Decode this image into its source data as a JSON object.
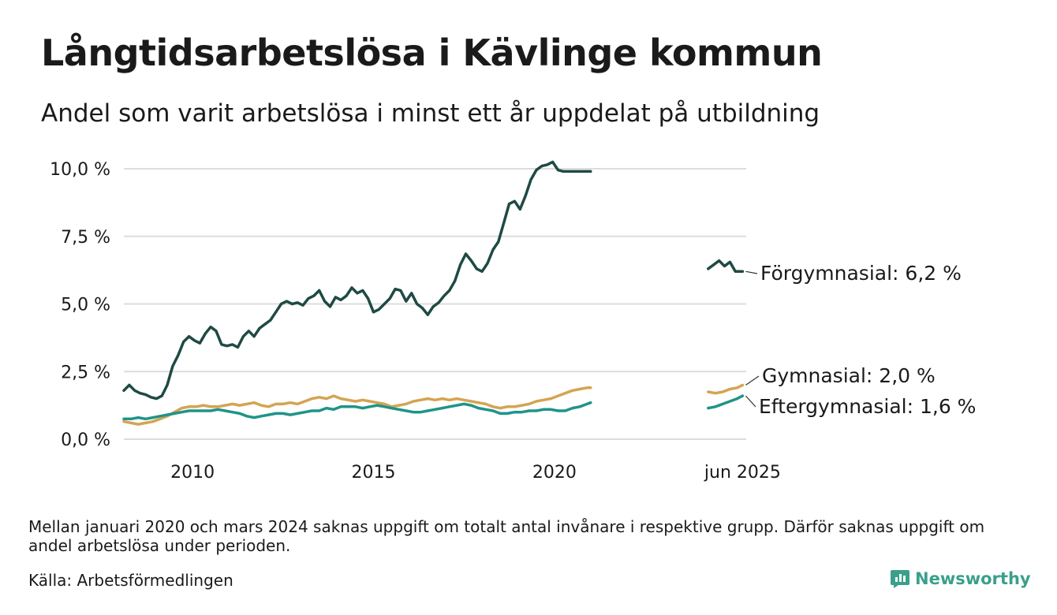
{
  "header": {
    "title": "Långtidsarbetslösa i Kävlinge kommun",
    "subtitle": "Andel som varit arbetslösa i minst ett år uppdelat på utbildning"
  },
  "footer": {
    "note": "Mellan januari 2020 och mars 2024 saknas uppgift om totalt antal invånare i respektive grupp. Därför saknas uppgift om andel arbetslösa under perioden.",
    "source": "Källa: Arbetsförmedlingen",
    "brand": "Newsworthy"
  },
  "colors": {
    "forgymnasial": "#1f4a44",
    "gymnasial": "#d4a452",
    "eftergymnasial": "#1f9488",
    "grid": "#dddddd",
    "brand": "#3aa08b"
  },
  "chart_data": {
    "type": "line",
    "title": "Långtidsarbetslösa i Kävlinge kommun",
    "subtitle": "Andel som varit arbetslösa i minst ett år uppdelat på utbildning",
    "y_ticks": [
      "0,0 %",
      "2,5 %",
      "5,0 %",
      "7,5 %",
      "10,0 %"
    ],
    "y_tick_values": [
      0,
      2.5,
      5,
      7.5,
      10
    ],
    "x_ticks": [
      "2010",
      "2015",
      "2020",
      "jun 2025"
    ],
    "x_tick_values": [
      2010.0,
      2015.0,
      2020.0,
      2025.2
    ],
    "xlim": [
      2008.1,
      2025.3
    ],
    "ylim": [
      0,
      10.0
    ],
    "grid": true,
    "series": [
      {
        "name": "Förgymnasial",
        "label": "Förgymnasial: 6,2 %",
        "color": "#1f4a44",
        "segments": [
          {
            "x": [
              2008.1,
              2008.25,
              2008.4,
              2008.55,
              2008.7,
              2008.85,
              2009.0,
              2009.15,
              2009.3,
              2009.45,
              2009.6,
              2009.75,
              2009.9,
              2010.05,
              2010.2,
              2010.35,
              2010.5,
              2010.65,
              2010.8,
              2010.95,
              2011.1,
              2011.25,
              2011.4,
              2011.55,
              2011.7,
              2011.85,
              2012.0,
              2012.15,
              2012.3,
              2012.45,
              2012.6,
              2012.75,
              2012.9,
              2013.05,
              2013.2,
              2013.35,
              2013.5,
              2013.65,
              2013.8,
              2013.95,
              2014.1,
              2014.25,
              2014.4,
              2014.55,
              2014.7,
              2014.85,
              2015.0,
              2015.15,
              2015.3,
              2015.45,
              2015.6,
              2015.75,
              2015.9,
              2016.05,
              2016.2,
              2016.35,
              2016.5,
              2016.65,
              2016.8,
              2016.95,
              2017.1,
              2017.25,
              2017.4,
              2017.55,
              2017.7,
              2017.85,
              2018.0,
              2018.15,
              2018.3,
              2018.45,
              2018.6,
              2018.75,
              2018.9,
              2019.05,
              2019.2,
              2019.35,
              2019.5,
              2019.65,
              2019.8,
              2019.95,
              2020.1,
              2020.25,
              2020.4,
              2020.55,
              2020.7,
              2020.85,
              2021.0
            ],
            "y": [
              1.8,
              2.0,
              1.8,
              1.7,
              1.65,
              1.55,
              1.5,
              1.6,
              2.0,
              2.7,
              3.1,
              3.6,
              3.8,
              3.65,
              3.55,
              3.9,
              4.15,
              4.0,
              3.5,
              3.45,
              3.5,
              3.4,
              3.8,
              4.0,
              3.8,
              4.1,
              4.25,
              4.4,
              4.7,
              5.0,
              5.1,
              5.0,
              5.05,
              4.95,
              5.2,
              5.3,
              5.5,
              5.1,
              4.9,
              5.25,
              5.15,
              5.3,
              5.6,
              5.4,
              5.5,
              5.2,
              4.7,
              4.8,
              5.0,
              5.2,
              5.55,
              5.5,
              5.1,
              5.4,
              5.0,
              4.85,
              4.6,
              4.9,
              5.05,
              5.3,
              5.5,
              5.85,
              6.45,
              6.85,
              6.6,
              6.3,
              6.2,
              6.5,
              7.0,
              7.3,
              8.0,
              8.7,
              8.8,
              8.5,
              9.0,
              9.6,
              9.95,
              10.1,
              10.15,
              10.25,
              9.95,
              9.9,
              9.9,
              9.9,
              9.9,
              9.9,
              9.9
            ]
          },
          {
            "x": [
              2024.25,
              2024.4,
              2024.55,
              2024.7,
              2024.85,
              2025.0,
              2025.2
            ],
            "y": [
              6.3,
              6.45,
              6.6,
              6.4,
              6.55,
              6.2,
              6.2
            ]
          }
        ]
      },
      {
        "name": "Gymnasial",
        "label": "Gymnasial: 2,0 %",
        "color": "#d4a452",
        "segments": [
          {
            "x": [
              2008.1,
              2008.3,
              2008.5,
              2008.7,
              2008.9,
              2009.1,
              2009.3,
              2009.5,
              2009.7,
              2009.9,
              2010.1,
              2010.3,
              2010.5,
              2010.7,
              2010.9,
              2011.1,
              2011.3,
              2011.5,
              2011.7,
              2011.9,
              2012.1,
              2012.3,
              2012.5,
              2012.7,
              2012.9,
              2013.1,
              2013.3,
              2013.5,
              2013.7,
              2013.9,
              2014.1,
              2014.3,
              2014.5,
              2014.7,
              2014.9,
              2015.1,
              2015.3,
              2015.5,
              2015.7,
              2015.9,
              2016.1,
              2016.3,
              2016.5,
              2016.7,
              2016.9,
              2017.1,
              2017.3,
              2017.5,
              2017.7,
              2017.9,
              2018.1,
              2018.3,
              2018.5,
              2018.7,
              2018.9,
              2019.1,
              2019.3,
              2019.5,
              2019.7,
              2019.9,
              2020.1,
              2020.3,
              2020.5,
              2020.7,
              2020.9,
              2021.0
            ],
            "y": [
              0.65,
              0.6,
              0.55,
              0.6,
              0.65,
              0.75,
              0.85,
              1.0,
              1.15,
              1.2,
              1.2,
              1.25,
              1.2,
              1.2,
              1.25,
              1.3,
              1.25,
              1.3,
              1.35,
              1.25,
              1.2,
              1.3,
              1.3,
              1.35,
              1.3,
              1.4,
              1.5,
              1.55,
              1.5,
              1.6,
              1.5,
              1.45,
              1.4,
              1.45,
              1.4,
              1.35,
              1.3,
              1.2,
              1.25,
              1.3,
              1.4,
              1.45,
              1.5,
              1.45,
              1.5,
              1.45,
              1.5,
              1.45,
              1.4,
              1.35,
              1.3,
              1.2,
              1.15,
              1.2,
              1.2,
              1.25,
              1.3,
              1.4,
              1.45,
              1.5,
              1.6,
              1.7,
              1.8,
              1.85,
              1.9,
              1.9
            ]
          },
          {
            "x": [
              2024.25,
              2024.45,
              2024.65,
              2024.85,
              2025.05,
              2025.2
            ],
            "y": [
              1.75,
              1.7,
              1.75,
              1.85,
              1.9,
              2.0
            ]
          }
        ]
      },
      {
        "name": "Eftergymnasial",
        "label": "Eftergymnasial: 1,6 %",
        "color": "#1f9488",
        "segments": [
          {
            "x": [
              2008.1,
              2008.3,
              2008.5,
              2008.7,
              2008.9,
              2009.1,
              2009.3,
              2009.5,
              2009.7,
              2009.9,
              2010.1,
              2010.3,
              2010.5,
              2010.7,
              2010.9,
              2011.1,
              2011.3,
              2011.5,
              2011.7,
              2011.9,
              2012.1,
              2012.3,
              2012.5,
              2012.7,
              2012.9,
              2013.1,
              2013.3,
              2013.5,
              2013.7,
              2013.9,
              2014.1,
              2014.3,
              2014.5,
              2014.7,
              2014.9,
              2015.1,
              2015.3,
              2015.5,
              2015.7,
              2015.9,
              2016.1,
              2016.3,
              2016.5,
              2016.7,
              2016.9,
              2017.1,
              2017.3,
              2017.5,
              2017.7,
              2017.9,
              2018.1,
              2018.3,
              2018.5,
              2018.7,
              2018.9,
              2019.1,
              2019.3,
              2019.5,
              2019.7,
              2019.9,
              2020.1,
              2020.3,
              2020.5,
              2020.7,
              2020.9,
              2021.0
            ],
            "y": [
              0.75,
              0.75,
              0.8,
              0.75,
              0.8,
              0.85,
              0.9,
              0.95,
              1.0,
              1.05,
              1.05,
              1.05,
              1.05,
              1.1,
              1.05,
              1.0,
              0.95,
              0.85,
              0.8,
              0.85,
              0.9,
              0.95,
              0.95,
              0.9,
              0.95,
              1.0,
              1.05,
              1.05,
              1.15,
              1.1,
              1.2,
              1.2,
              1.2,
              1.15,
              1.2,
              1.25,
              1.2,
              1.15,
              1.1,
              1.05,
              1.0,
              1.0,
              1.05,
              1.1,
              1.15,
              1.2,
              1.25,
              1.3,
              1.25,
              1.15,
              1.1,
              1.05,
              0.95,
              0.95,
              1.0,
              1.0,
              1.05,
              1.05,
              1.1,
              1.1,
              1.05,
              1.05,
              1.15,
              1.2,
              1.3,
              1.35
            ]
          },
          {
            "x": [
              2024.25,
              2024.45,
              2024.65,
              2024.85,
              2025.05,
              2025.2
            ],
            "y": [
              1.15,
              1.2,
              1.3,
              1.4,
              1.5,
              1.6
            ]
          }
        ]
      }
    ]
  }
}
